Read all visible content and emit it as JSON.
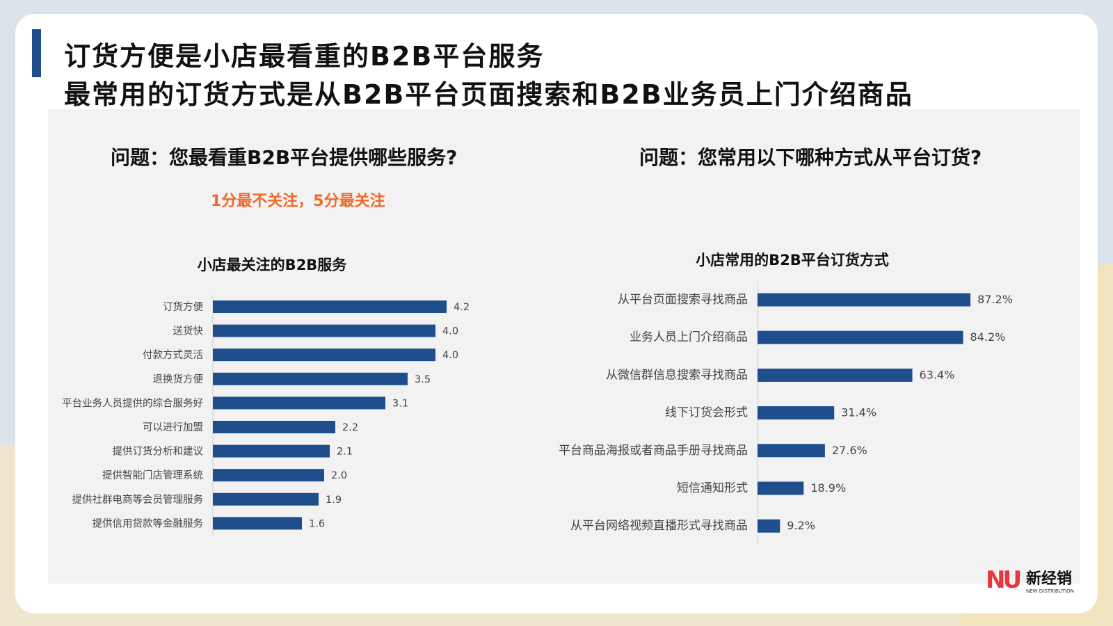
{
  "title": {
    "line1": "订货方便是小店最看重的B2B平台服务",
    "line2": "最常用的订货方式是从B2B平台页面搜索和B2B业务员上门介绍商品"
  },
  "left": {
    "question": "问题：您最看重B2B平台提供哪些服务?",
    "note": "1分最不关注，5分最关注"
  },
  "right": {
    "question": "问题：您常用以下哪种方式从平台订货?"
  },
  "logo": {
    "mark": "NU",
    "cn": "新经销",
    "en": "NEW DISTRIBUTION"
  },
  "colors": {
    "bar": "#1f4e8c",
    "accent_note": "#f06a2c",
    "title_bar": "#1f4e8c"
  },
  "chart_data": [
    {
      "type": "bar",
      "orientation": "horizontal",
      "title": "小店最关注的B2B服务",
      "categories": [
        "订货方便",
        "送货快",
        "付款方式灵活",
        "退换货方便",
        "平台业务人员提供的综合服务好",
        "可以进行加盟",
        "提供订货分析和建议",
        "提供智能门店管理系统",
        "提供社群电商等会员管理服务",
        "提供信用贷款等金融服务"
      ],
      "values": [
        4.2,
        4.0,
        4.0,
        3.5,
        3.1,
        2.2,
        2.1,
        2.0,
        1.9,
        1.6
      ],
      "labels": [
        "4.2",
        "4.0",
        "4.0",
        "3.5",
        "3.1",
        "2.2",
        "2.1",
        "2.0",
        "1.9",
        "1.6"
      ],
      "xlim": [
        0,
        5
      ],
      "grid": false,
      "legend": "none"
    },
    {
      "type": "bar",
      "orientation": "horizontal",
      "title": "小店常用的B2B平台订货方式",
      "categories": [
        "从平台页面搜索寻找商品",
        "业务人员上门介绍商品",
        "从微信群信息搜索寻找商品",
        "线下订货会形式",
        "平台商品海报或者商品手册寻找商品",
        "短信通知形式",
        "从平台网络视频直播形式寻找商品"
      ],
      "values": [
        87.2,
        84.2,
        63.4,
        31.4,
        27.6,
        18.9,
        9.2
      ],
      "labels": [
        "87.2%",
        "84.2%",
        "63.4%",
        "31.4%",
        "27.6%",
        "18.9%",
        "9.2%"
      ],
      "xlim": [
        0,
        100
      ],
      "grid": false,
      "legend": "none"
    }
  ]
}
